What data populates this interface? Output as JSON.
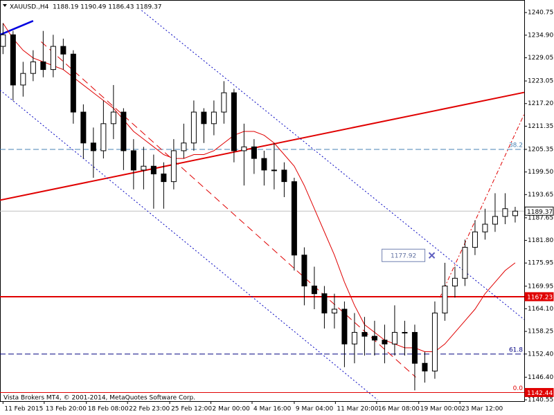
{
  "chart_data": {
    "type": "candlestick",
    "title": "XAUUSD.,H4  1188.19 1190.49 1186.43 1189.37",
    "footer": "Vista Brokers MT4, © 2001-2014, MetaQuotes Software Corp.",
    "open": [
      1232,
      1235,
      1222,
      1225,
      1228,
      1226,
      1232,
      1230,
      1215,
      1207,
      1205,
      1212,
      1215,
      1205,
      1200,
      1201,
      1199,
      1197,
      1205,
      1207,
      1215,
      1212,
      1215,
      1220,
      1205,
      1206,
      1203,
      1200,
      1200,
      1197,
      1178,
      1170,
      1168,
      1163,
      1164,
      1155,
      1158,
      1157,
      1156,
      1155,
      1158,
      1158,
      1150,
      1148,
      1163,
      1170,
      1172,
      1180,
      1184,
      1186,
      1188,
      1188.19
    ],
    "high": [
      1238,
      1236,
      1228,
      1231,
      1236,
      1235,
      1234,
      1231,
      1217,
      1211,
      1218,
      1222,
      1216,
      1208,
      1206,
      1204,
      1202,
      1208,
      1212,
      1218,
      1216,
      1218,
      1223,
      1221,
      1212,
      1208,
      1205,
      1207,
      1202,
      1198,
      1180,
      1175,
      1170,
      1168,
      1166,
      1163,
      1162,
      1161,
      1160,
      1165,
      1161,
      1160,
      1153,
      1166,
      1176,
      1175,
      1182,
      1187,
      1190,
      1194,
      1194,
      1190.49
    ],
    "low": [
      1230,
      1218,
      1219,
      1223,
      1224,
      1224,
      1226,
      1212,
      1203,
      1198,
      1203,
      1208,
      1200,
      1195,
      1195,
      1190,
      1190,
      1195,
      1203,
      1205,
      1207,
      1209,
      1212,
      1202,
      1196,
      1199,
      1196,
      1195,
      1193,
      1174,
      1165,
      1164,
      1159,
      1159,
      1149,
      1150,
      1152,
      1152,
      1150,
      1152,
      1152,
      1143,
      1145,
      1146,
      1161,
      1167,
      1170,
      1178,
      1182,
      1184,
      1186,
      1186.43
    ],
    "close": [
      1235,
      1222,
      1225,
      1228,
      1226,
      1232,
      1230,
      1215,
      1207,
      1205,
      1212,
      1215,
      1205,
      1200,
      1201,
      1199,
      1197,
      1205,
      1207,
      1215,
      1212,
      1215,
      1220,
      1205,
      1206,
      1203,
      1200,
      1200,
      1197,
      1178,
      1170,
      1168,
      1163,
      1164,
      1155,
      1158,
      1157,
      1156,
      1155,
      1158,
      1158,
      1150,
      1148,
      1163,
      1170,
      1172,
      1180,
      1184,
      1186,
      1188,
      1190,
      1189.37
    ],
    "series": [
      {
        "color": "#e00000",
        "values": [
          1238,
          1234,
          1231,
          1229,
          1228,
          1227,
          1226,
          1224,
          1222,
          1220,
          1218,
          1216,
          1213,
          1210,
          1208,
          1206,
          1204,
          1203,
          1203,
          1204,
          1204,
          1205,
          1207,
          1209,
          1210,
          1210,
          1209,
          1207,
          1204,
          1201,
          1196,
          1190,
          1184,
          1178,
          1171,
          1165,
          1160,
          1158,
          1156,
          1155,
          1154,
          1154,
          1153,
          1153,
          1155,
          1158,
          1161,
          1164,
          1168,
          1171,
          1174,
          1176
        ]
      }
    ],
    "xlim": [
      -0.3,
      51.9
    ],
    "ylim": [
      1140.2,
      1244.0
    ],
    "xticks": [
      {
        "value": 0,
        "label": "11 Feb 2015"
      },
      {
        "value": 4.1,
        "label": "13 Feb 20:00"
      },
      {
        "value": 8.3,
        "label": "18 Feb 08:00"
      },
      {
        "value": 12.4,
        "label": "22 Feb 23:00"
      },
      {
        "value": 16.6,
        "label": "25 Feb 12:00"
      },
      {
        "value": 20.7,
        "label": "2 Mar 00:00"
      },
      {
        "value": 24.8,
        "label": "4 Mar 16:00"
      },
      {
        "value": 29,
        "label": "9 Mar 04:00"
      },
      {
        "value": 33.1,
        "label": "11 Mar 20:00"
      },
      {
        "value": 37.2,
        "label": "16 Mar 08:00"
      },
      {
        "value": 41.4,
        "label": "19 Mar 00:00"
      },
      {
        "value": 45.5,
        "label": "23 Mar 12:00"
      }
    ],
    "yticks": [
      1240.75,
      {
        "value": 1234.9,
        "label": "1234.90"
      },
      1229.05,
      1223.05,
      {
        "value": 1217.2,
        "label": "1217.20"
      },
      1211.35,
      1205.35,
      {
        "value": 1199.5,
        "label": "1199.50"
      },
      1193.65,
      1187.65,
      {
        "value": 1181.8,
        "label": "1181.80"
      },
      1175.95,
      1169.95,
      {
        "value": 1164.1,
        "label": "1164.10"
      },
      1158.25,
      {
        "value": 1152.4,
        "label": "1152.40"
      },
      {
        "value": 1146.4,
        "label": "1146.40"
      },
      1140.55
    ],
    "hlines": [
      {
        "value": 1205.35,
        "color": "#4682b4",
        "dash": "8,4",
        "width": 1,
        "label": "38.2"
      },
      {
        "value": 1152.4,
        "color": "#000080",
        "dash": "8,4",
        "width": 1,
        "label": "61.8"
      },
      {
        "value": 1142.44,
        "color": "#e00000",
        "dash": "none",
        "width": 1,
        "label": "0.0"
      },
      {
        "value": 1167.23,
        "color": "#e00000",
        "dash": "none",
        "width": 2
      },
      {
        "value": 1189.37,
        "color": "#c0c0c0",
        "dash": "none",
        "width": 1
      }
    ],
    "price_tags": [
      {
        "value": 1189.37,
        "color": "#ffffff",
        "text_color": "#000000"
      },
      {
        "value": 1167.23,
        "color": "#e00000",
        "text_color": "#ffffff"
      },
      {
        "value": 1142.44,
        "color": "#e00000",
        "text_color": "#ffffff"
      }
    ],
    "trendlines": [
      {
        "from": [
          -0.3,
          1192.2
        ],
        "to": [
          51.9,
          1220.1
        ],
        "color": "#e00000",
        "dash": "none",
        "width": 2
      },
      {
        "from": [
          -0.3,
          1235.0
        ],
        "to": [
          3.0,
          1238.6
        ],
        "color": "#0000e0",
        "dash": "none",
        "width": 2.5
      },
      {
        "from": [
          13.8,
          1241.3
        ],
        "to": [
          51.9,
          1161.3
        ],
        "color": "#0000c0",
        "dash": "2,3",
        "width": 1
      },
      {
        "from": [
          -0.3,
          1220.7
        ],
        "to": [
          37.3,
          1140.55
        ],
        "color": "#0000c0",
        "dash": "2,3",
        "width": 1
      },
      {
        "from": [
          3.8,
          1233.2
        ],
        "to": [
          41.1,
          1146.4
        ],
        "color": "#e00000",
        "dash": "10,6",
        "width": 1
      },
      {
        "from": [
          43.5,
          1167.0
        ],
        "to": [
          51.9,
          1214.5
        ],
        "color": "#e00000",
        "dash": "6,3,2,3",
        "width": 1
      }
    ],
    "callout": {
      "value": 1177.92,
      "at": 42.7
    }
  }
}
